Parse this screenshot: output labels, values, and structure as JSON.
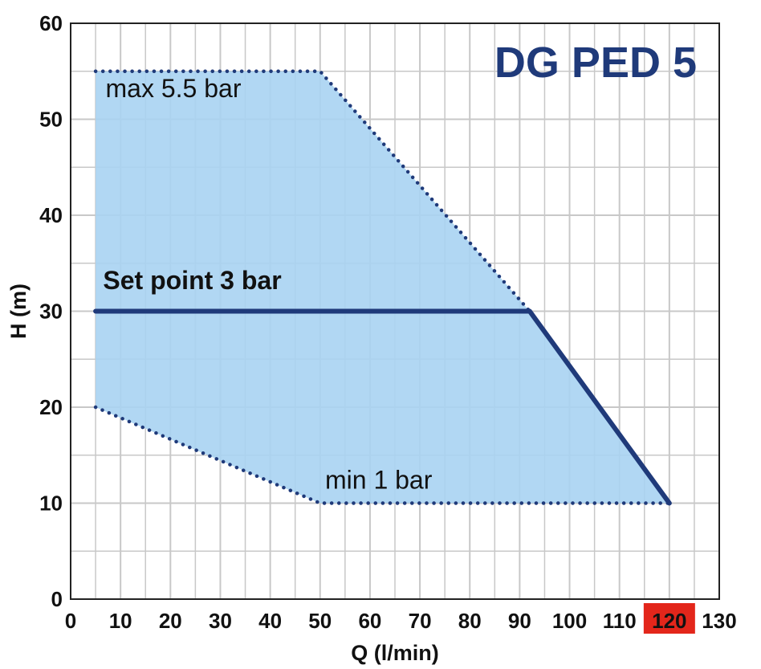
{
  "chart_data": {
    "type": "area",
    "title": "DG PED 5",
    "xlabel": "Q (l/min)",
    "ylabel": "H (m)",
    "xlim": [
      0,
      130
    ],
    "ylim": [
      0,
      60
    ],
    "x_ticks": [
      0,
      10,
      20,
      30,
      40,
      50,
      60,
      70,
      80,
      90,
      100,
      110,
      120,
      130
    ],
    "y_ticks": [
      0,
      10,
      20,
      30,
      40,
      50,
      60
    ],
    "highlighted_x_tick": 120,
    "grid": true,
    "operating_region": {
      "boundary": [
        [
          5,
          55
        ],
        [
          50,
          55
        ],
        [
          92,
          30
        ],
        [
          120,
          10
        ],
        [
          50,
          10
        ],
        [
          5,
          20
        ]
      ]
    },
    "series": [
      {
        "name": "max 5.5 bar",
        "style": "dotted",
        "x": [
          5,
          50,
          92
        ],
        "y": [
          55,
          55,
          30
        ]
      },
      {
        "name": "min 1 bar",
        "style": "dotted",
        "x": [
          5,
          50,
          120
        ],
        "y": [
          20,
          10,
          10
        ]
      },
      {
        "name": "Set point 3 bar",
        "style": "solid",
        "x": [
          5,
          92,
          120
        ],
        "y": [
          30,
          30,
          10
        ]
      }
    ],
    "annotations": [
      {
        "text": "max 5.5 bar",
        "x": 7,
        "y": 52.3,
        "bold": false
      },
      {
        "text": "Set point 3 bar",
        "x": 6.5,
        "y": 32.3,
        "bold": true
      },
      {
        "text": "min 1 bar",
        "x": 51,
        "y": 11.5,
        "bold": false
      }
    ],
    "colors": {
      "region_fill": "#a9d3f2",
      "line": "#1f3a7a",
      "grid": "#c8c8c8",
      "highlight_tick_bg": "#e3261b",
      "title": "#1f3a7a"
    }
  }
}
